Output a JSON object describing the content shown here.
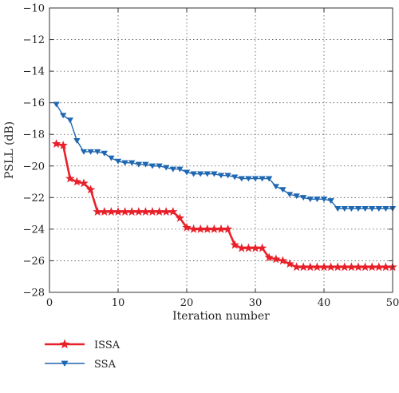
{
  "chart_data": {
    "type": "line",
    "xlabel": "Iteration number",
    "ylabel": "PSLL (dB)",
    "xlim": [
      0,
      50
    ],
    "ylim": [
      -28,
      -10
    ],
    "xticks": [
      0,
      10,
      20,
      30,
      40,
      50
    ],
    "yticks": [
      -28,
      -26,
      -24,
      -22,
      -20,
      -18,
      -16,
      -14,
      -12,
      -10
    ],
    "grid": true,
    "legend_position": "below",
    "x": [
      1,
      2,
      3,
      4,
      5,
      6,
      7,
      8,
      9,
      10,
      11,
      12,
      13,
      14,
      15,
      16,
      17,
      18,
      19,
      20,
      21,
      22,
      23,
      24,
      25,
      26,
      27,
      28,
      29,
      30,
      31,
      32,
      33,
      34,
      35,
      36,
      37,
      38,
      39,
      40,
      41,
      42,
      43,
      44,
      45,
      46,
      47,
      48,
      49,
      50
    ],
    "series": [
      {
        "name": "ISSA",
        "color": "#e8202a",
        "marker": "star",
        "values": [
          -18.6,
          -18.7,
          -20.8,
          -21.0,
          -21.1,
          -21.5,
          -22.9,
          -22.9,
          -22.9,
          -22.9,
          -22.9,
          -22.9,
          -22.9,
          -22.9,
          -22.9,
          -22.9,
          -22.9,
          -22.9,
          -23.3,
          -23.9,
          -24.0,
          -24.0,
          -24.0,
          -24.0,
          -24.0,
          -24.0,
          -25.0,
          -25.2,
          -25.2,
          -25.2,
          -25.2,
          -25.8,
          -25.9,
          -26.0,
          -26.2,
          -26.4,
          -26.4,
          -26.4,
          -26.4,
          -26.4,
          -26.4,
          -26.4,
          -26.4,
          -26.4,
          -26.4,
          -26.4,
          -26.4,
          -26.4,
          -26.4,
          -26.4
        ]
      },
      {
        "name": "SSA",
        "color": "#1f67b1",
        "marker": "triangle-down",
        "values": [
          -16.1,
          -16.8,
          -17.1,
          -18.4,
          -19.1,
          -19.1,
          -19.1,
          -19.2,
          -19.5,
          -19.7,
          -19.8,
          -19.8,
          -19.9,
          -19.9,
          -20.0,
          -20.0,
          -20.1,
          -20.2,
          -20.2,
          -20.4,
          -20.5,
          -20.5,
          -20.5,
          -20.5,
          -20.6,
          -20.6,
          -20.7,
          -20.8,
          -20.8,
          -20.8,
          -20.8,
          -20.8,
          -21.3,
          -21.5,
          -21.8,
          -21.9,
          -22.0,
          -22.1,
          -22.1,
          -22.1,
          -22.2,
          -22.7,
          -22.7,
          -22.7,
          -22.7,
          -22.7,
          -22.7,
          -22.7,
          -22.7,
          -22.7
        ]
      }
    ]
  }
}
